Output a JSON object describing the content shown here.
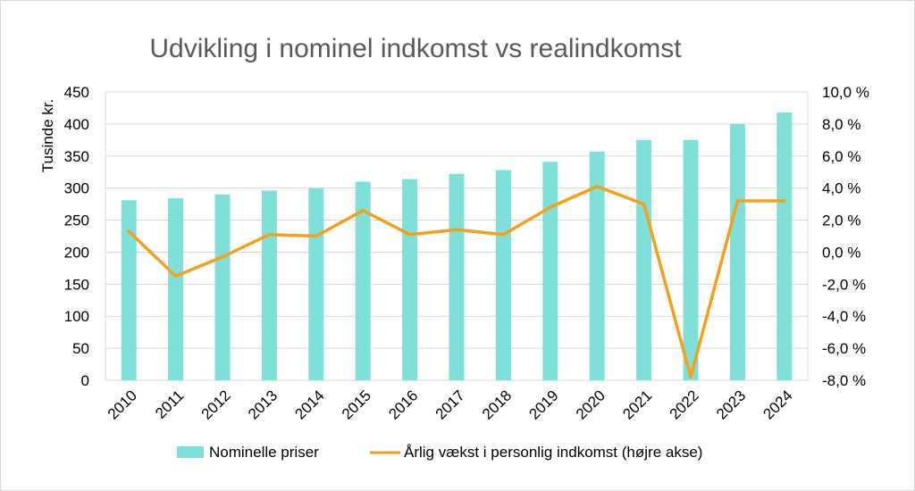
{
  "chart_data": {
    "type": "bar",
    "title": "Udvikling i nominel indkomst vs realindkomst",
    "ylabel": "Tusinde kr.",
    "ylim": [
      0,
      450
    ],
    "y_ticks": [
      "0",
      "50",
      "100",
      "150",
      "200",
      "250",
      "300",
      "350",
      "400",
      "450"
    ],
    "y2lim": [
      -8,
      10
    ],
    "y2_ticks": [
      "-8,0 %",
      "-6,0 %",
      "-4,0 %",
      "-2,0 %",
      "0,0 %",
      "2,0 %",
      "4,0 %",
      "6,0 %",
      "8,0 %",
      "10,0 %"
    ],
    "categories": [
      "2010",
      "2011",
      "2012",
      "2013",
      "2014",
      "2015",
      "2016",
      "2017",
      "2018",
      "2019",
      "2020",
      "2021",
      "2022",
      "2023",
      "2024"
    ],
    "series": [
      {
        "name": "Nominelle priser",
        "type": "bar",
        "axis": "left",
        "color": "#7fe0d9",
        "values": [
          281,
          284,
          290,
          296,
          300,
          310,
          314,
          322,
          328,
          341,
          357,
          375,
          375,
          400,
          418
        ]
      },
      {
        "name": "Årlig vækst i personlig indkomst (højre akse)",
        "type": "line",
        "axis": "right",
        "color": "#f5a01a",
        "values": [
          1.3,
          -1.5,
          -0.3,
          1.1,
          1.0,
          2.6,
          1.1,
          1.4,
          1.1,
          2.8,
          4.1,
          3.0,
          -7.8,
          3.2,
          3.2
        ]
      }
    ],
    "grid": true,
    "legend_position": "bottom"
  }
}
